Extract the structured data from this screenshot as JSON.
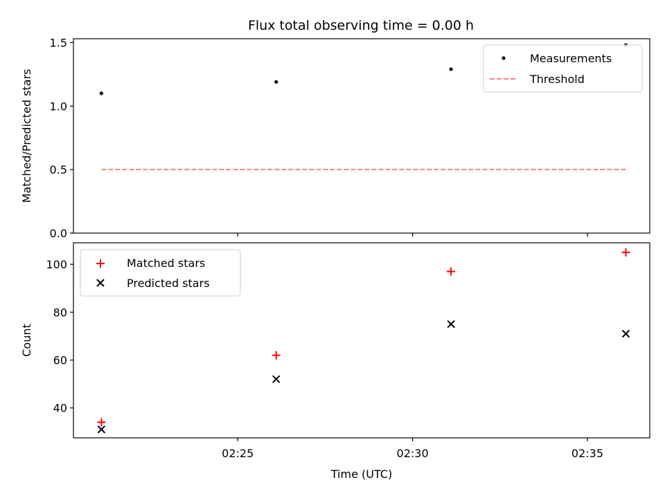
{
  "title": "Flux total observing time = 0.00 h",
  "chart_data": [
    {
      "type": "scatter",
      "panel": "top",
      "ylabel": "Matched/Predicted stars",
      "xlabel": "",
      "ylim": [
        0,
        1.53
      ],
      "yticks": [
        0.0,
        0.5,
        1.0,
        1.5
      ],
      "ytick_labels": [
        "0.0",
        "0.5",
        "1.0",
        "1.5"
      ],
      "xlim": [
        "02:20:18",
        "02:36:47"
      ],
      "xticks": [
        "02:25",
        "02:30",
        "02:35"
      ],
      "legend_position": "top-right",
      "series": [
        {
          "name": "Measurements",
          "kind": "scatter",
          "marker": "dot",
          "color": "#000000",
          "x": [
            "02:21:06",
            "02:26:06",
            "02:31:06",
            "02:36:06"
          ],
          "y": [
            1.1,
            1.19,
            1.29,
            1.48
          ]
        },
        {
          "name": "Threshold",
          "kind": "line",
          "style": "dashed",
          "color": "#ff7f7f",
          "x": [
            "02:21:06",
            "02:36:06"
          ],
          "y": [
            0.5,
            0.5
          ]
        }
      ]
    },
    {
      "type": "scatter",
      "panel": "bottom",
      "ylabel": "Count",
      "xlabel": "Time (UTC)",
      "ylim": [
        27.5,
        109
      ],
      "yticks": [
        40,
        60,
        80,
        100
      ],
      "ytick_labels": [
        "40",
        "60",
        "80",
        "100"
      ],
      "xlim": [
        "02:20:18",
        "02:36:47"
      ],
      "xticks": [
        "02:25",
        "02:30",
        "02:35"
      ],
      "xtick_labels": [
        "02:25",
        "02:30",
        "02:35"
      ],
      "legend_position": "top-left",
      "series": [
        {
          "name": "Matched stars",
          "kind": "scatter",
          "marker": "plus",
          "color": "#ff0000",
          "x": [
            "02:21:06",
            "02:26:06",
            "02:31:06",
            "02:36:06"
          ],
          "y": [
            34,
            62,
            97,
            105
          ]
        },
        {
          "name": "Predicted stars",
          "kind": "scatter",
          "marker": "x",
          "color": "#000000",
          "x": [
            "02:21:06",
            "02:26:06",
            "02:31:06",
            "02:36:06"
          ],
          "y": [
            31,
            52,
            75,
            71
          ]
        }
      ]
    }
  ]
}
